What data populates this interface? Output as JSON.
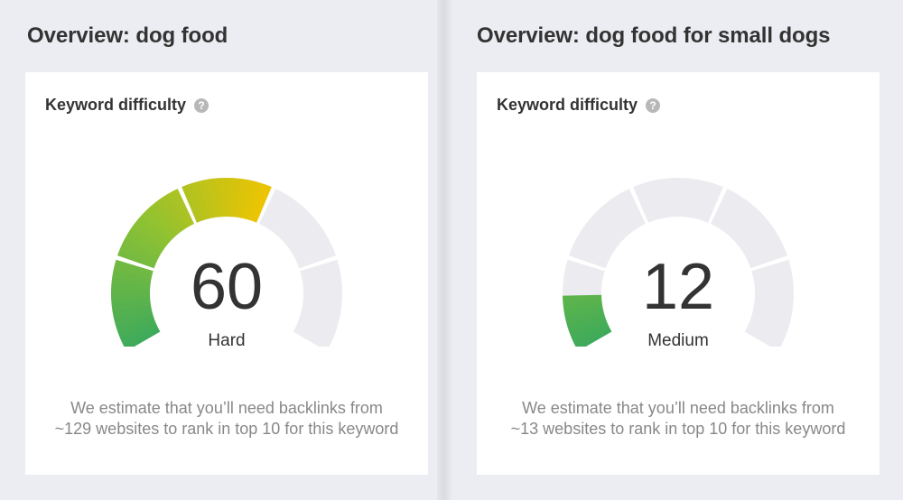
{
  "panels": [
    {
      "title": "Overview: dog food",
      "card": {
        "title": "Keyword difficulty",
        "help": "?",
        "score": "60",
        "score_fraction": 0.6,
        "difficulty_label": "Hard",
        "note_line1": "We estimate that you’ll need backlinks from",
        "note_line2": "~129 websites to rank in top 10 for this keyword"
      }
    },
    {
      "title": "Overview: dog food for small dogs",
      "card": {
        "title": "Keyword difficulty",
        "help": "?",
        "score": "12",
        "score_fraction": 0.12,
        "difficulty_label": "Medium",
        "note_line1": "We estimate that you’ll need backlinks from",
        "note_line2": "~13 websites to rank in top 10 for this keyword"
      }
    }
  ],
  "colors": {
    "track": "#ececf0",
    "fill_start": "#3daa5b",
    "fill_mid": "#8fc232",
    "fill_end": "#f0c400"
  }
}
